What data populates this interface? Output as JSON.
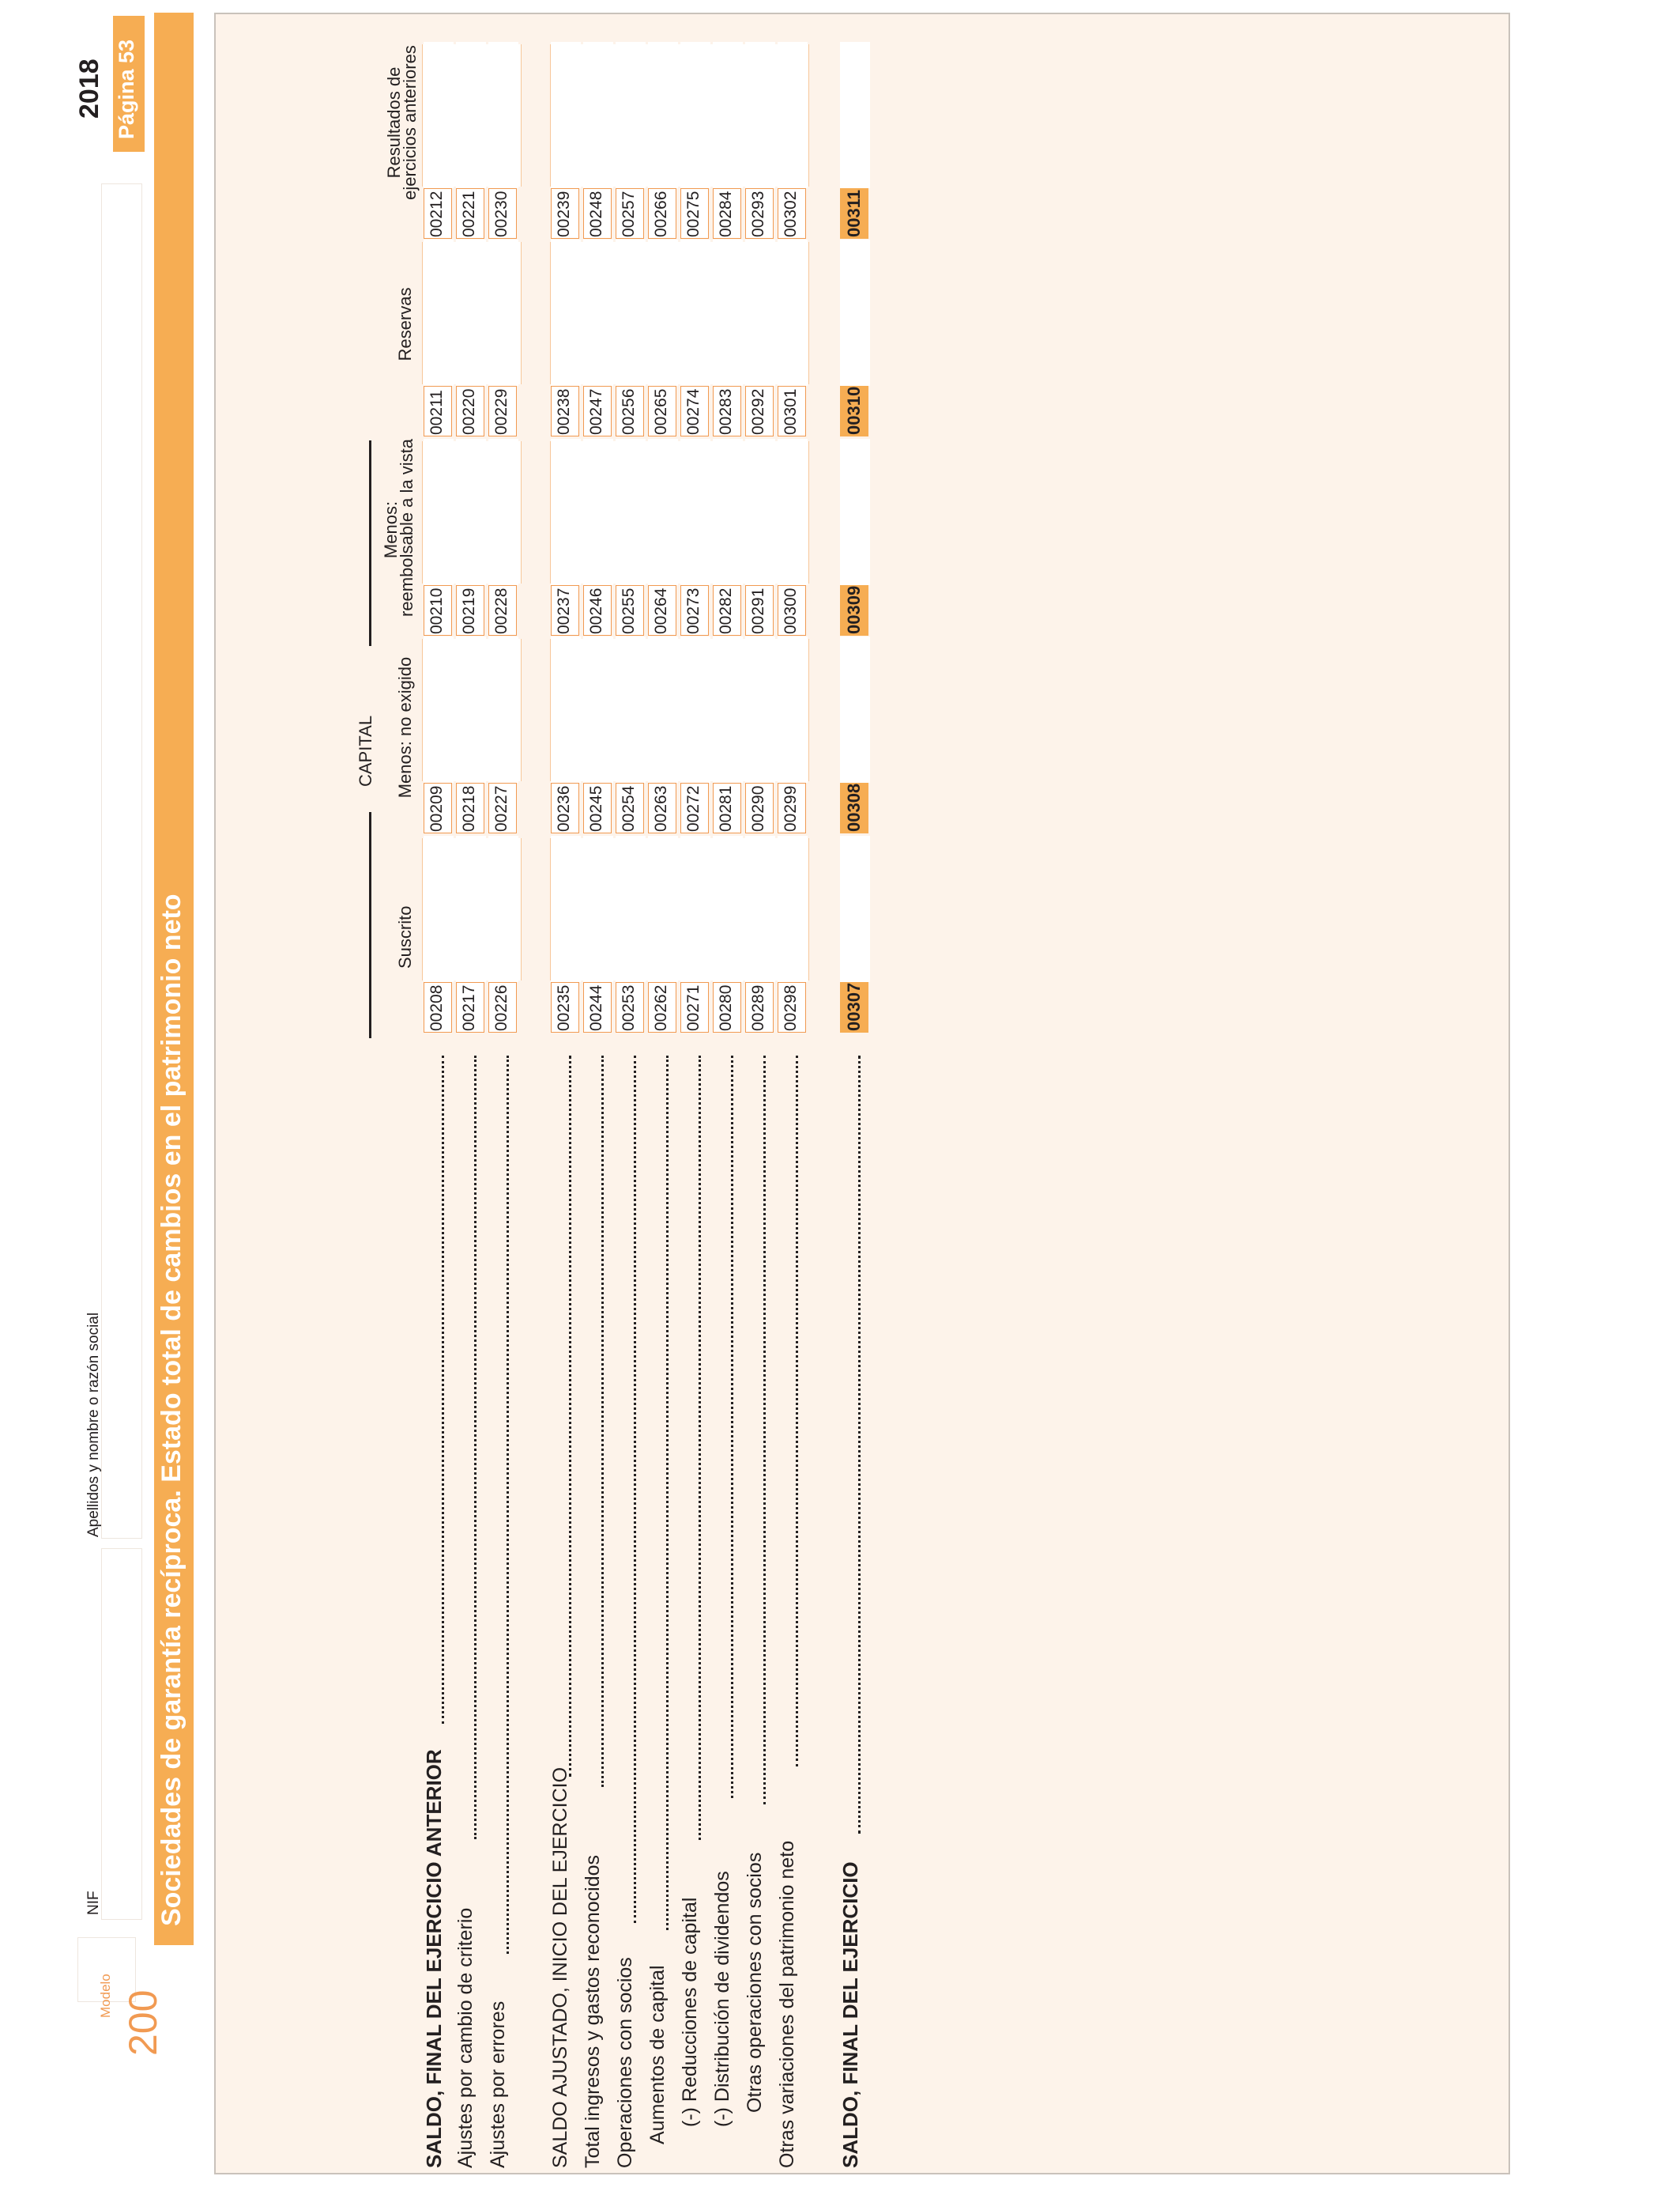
{
  "header": {
    "modelo_label": "Modelo",
    "modelo_number": "200",
    "nif_label": "NIF",
    "name_label": "Apellidos y nombre o razón social",
    "year": "2018",
    "page_label": "Página 53"
  },
  "title": "Sociedades de garantía recíproca. Estado total de cambios en el patrimonio neto",
  "columns": {
    "capital_group": "CAPITAL",
    "suscrito": "Suscrito",
    "no_exigido": "Menos: no exigido",
    "reembolsable_l1": "Menos:",
    "reembolsable_l2": "reembolsable a la vista",
    "reservas": "Reservas",
    "resultados_l1": "Resultados de",
    "resultados_l2": "ejercicios anteriores"
  },
  "rows": [
    {
      "label": "SALDO, FINAL DEL EJERCICIO ANTERIOR",
      "bold": true,
      "codes": [
        "00208",
        "00209",
        "00210",
        "00211",
        "00212"
      ]
    },
    {
      "label": "Ajustes por cambio de criterio",
      "bold": false,
      "codes": [
        "00217",
        "00218",
        "00219",
        "00220",
        "00221"
      ]
    },
    {
      "label": "Ajustes por errores",
      "bold": false,
      "codes": [
        "00226",
        "00227",
        "00228",
        "00229",
        "00230"
      ]
    },
    {
      "label": "SALDO AJUSTADO, INICIO DEL EJERCICIO",
      "bold": false,
      "codes": [
        "00235",
        "00236",
        "00237",
        "00238",
        "00239"
      ]
    },
    {
      "label": "Total ingresos y gastos reconocidos",
      "bold": false,
      "codes": [
        "00244",
        "00245",
        "00246",
        "00247",
        "00248"
      ]
    },
    {
      "label": "Operaciones con socios",
      "bold": false,
      "codes": [
        "00253",
        "00254",
        "00255",
        "00256",
        "00257"
      ]
    },
    {
      "label": "Aumentos de capital",
      "bold": false,
      "codes": [
        "00262",
        "00263",
        "00264",
        "00265",
        "00266"
      ]
    },
    {
      "label": "(-) Reducciones de capital",
      "bold": false,
      "codes": [
        "00271",
        "00272",
        "00273",
        "00274",
        "00275"
      ]
    },
    {
      "label": "(-) Distribución de dividendos",
      "bold": false,
      "codes": [
        "00280",
        "00281",
        "00282",
        "00283",
        "00284"
      ]
    },
    {
      "label": "Otras operaciones con socios",
      "bold": false,
      "codes": [
        "00289",
        "00290",
        "00291",
        "00292",
        "00293"
      ]
    },
    {
      "label": "Otras variaciones del patrimonio neto",
      "bold": false,
      "codes": [
        "00298",
        "00299",
        "00300",
        "00301",
        "00302"
      ]
    },
    {
      "label": "SALDO, FINAL DEL EJERCICIO",
      "bold": true,
      "codes": [
        "00307",
        "00308",
        "00309",
        "00310",
        "00311"
      ]
    }
  ]
}
